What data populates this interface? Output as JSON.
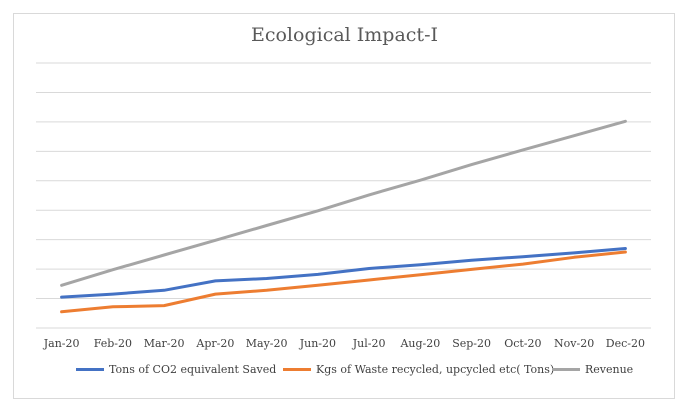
{
  "chart_data": {
    "type": "line",
    "title": "Ecological Impact-I",
    "categories": [
      "Jan-20",
      "Feb-20",
      "Mar-20",
      "Apr-20",
      "May-20",
      "Jun-20",
      "Jul-20",
      "Aug-20",
      "Sep-20",
      "Oct-20",
      "Nov-20",
      "Dec-20"
    ],
    "ylim": [
      0,
      9
    ],
    "gridlines": true,
    "legend_position": "bottom",
    "series": [
      {
        "name": "Tons of CO2 equivalent Saved",
        "color": "#4472c4",
        "values": [
          1.05,
          1.15,
          1.28,
          1.6,
          1.68,
          1.82,
          2.02,
          2.15,
          2.3,
          2.42,
          2.55,
          2.7
        ]
      },
      {
        "name": "Kgs of Waste recycled, upcycled etc( Tons)",
        "color": "#ed7d31",
        "values": [
          0.55,
          0.72,
          0.76,
          1.15,
          1.28,
          1.45,
          1.63,
          1.81,
          1.99,
          2.17,
          2.4,
          2.58
        ]
      },
      {
        "name": "Revenue",
        "color": "#a5a5a5",
        "values": [
          1.45,
          1.98,
          2.48,
          2.98,
          3.48,
          3.98,
          4.52,
          5.02,
          5.55,
          6.05,
          6.53,
          7.02
        ]
      }
    ]
  }
}
